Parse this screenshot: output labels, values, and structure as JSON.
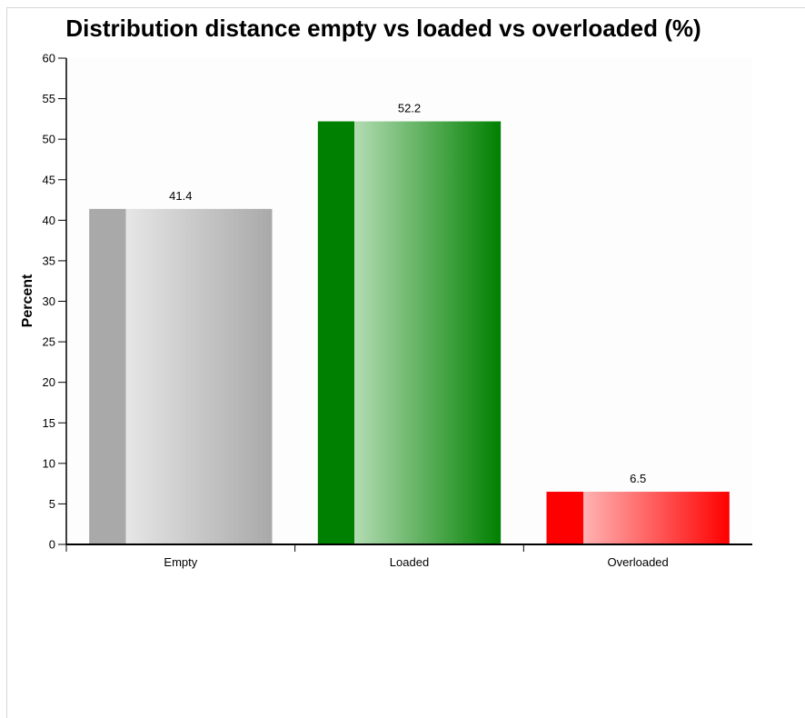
{
  "chart_data": {
    "type": "bar",
    "title": "Distribution distance empty vs loaded vs overloaded (%)",
    "xlabel": "",
    "ylabel": "Percent",
    "categories": [
      "Empty",
      "Loaded",
      "Overloaded"
    ],
    "values": [
      41.4,
      52.2,
      6.5
    ],
    "value_labels": [
      "41.4",
      "52.2",
      "6.5"
    ],
    "ylim": [
      0,
      60
    ],
    "yticks": [
      0,
      5,
      10,
      15,
      20,
      25,
      30,
      35,
      40,
      45,
      50,
      55,
      60
    ],
    "grid": false,
    "legend": "none",
    "bar_colors": [
      {
        "dark": "#a9a9a9",
        "light": "#e6e6e6"
      },
      {
        "dark": "#008000",
        "light": "#b3dcb3"
      },
      {
        "dark": "#ff0000",
        "light": "#ffb3b3"
      }
    ]
  }
}
